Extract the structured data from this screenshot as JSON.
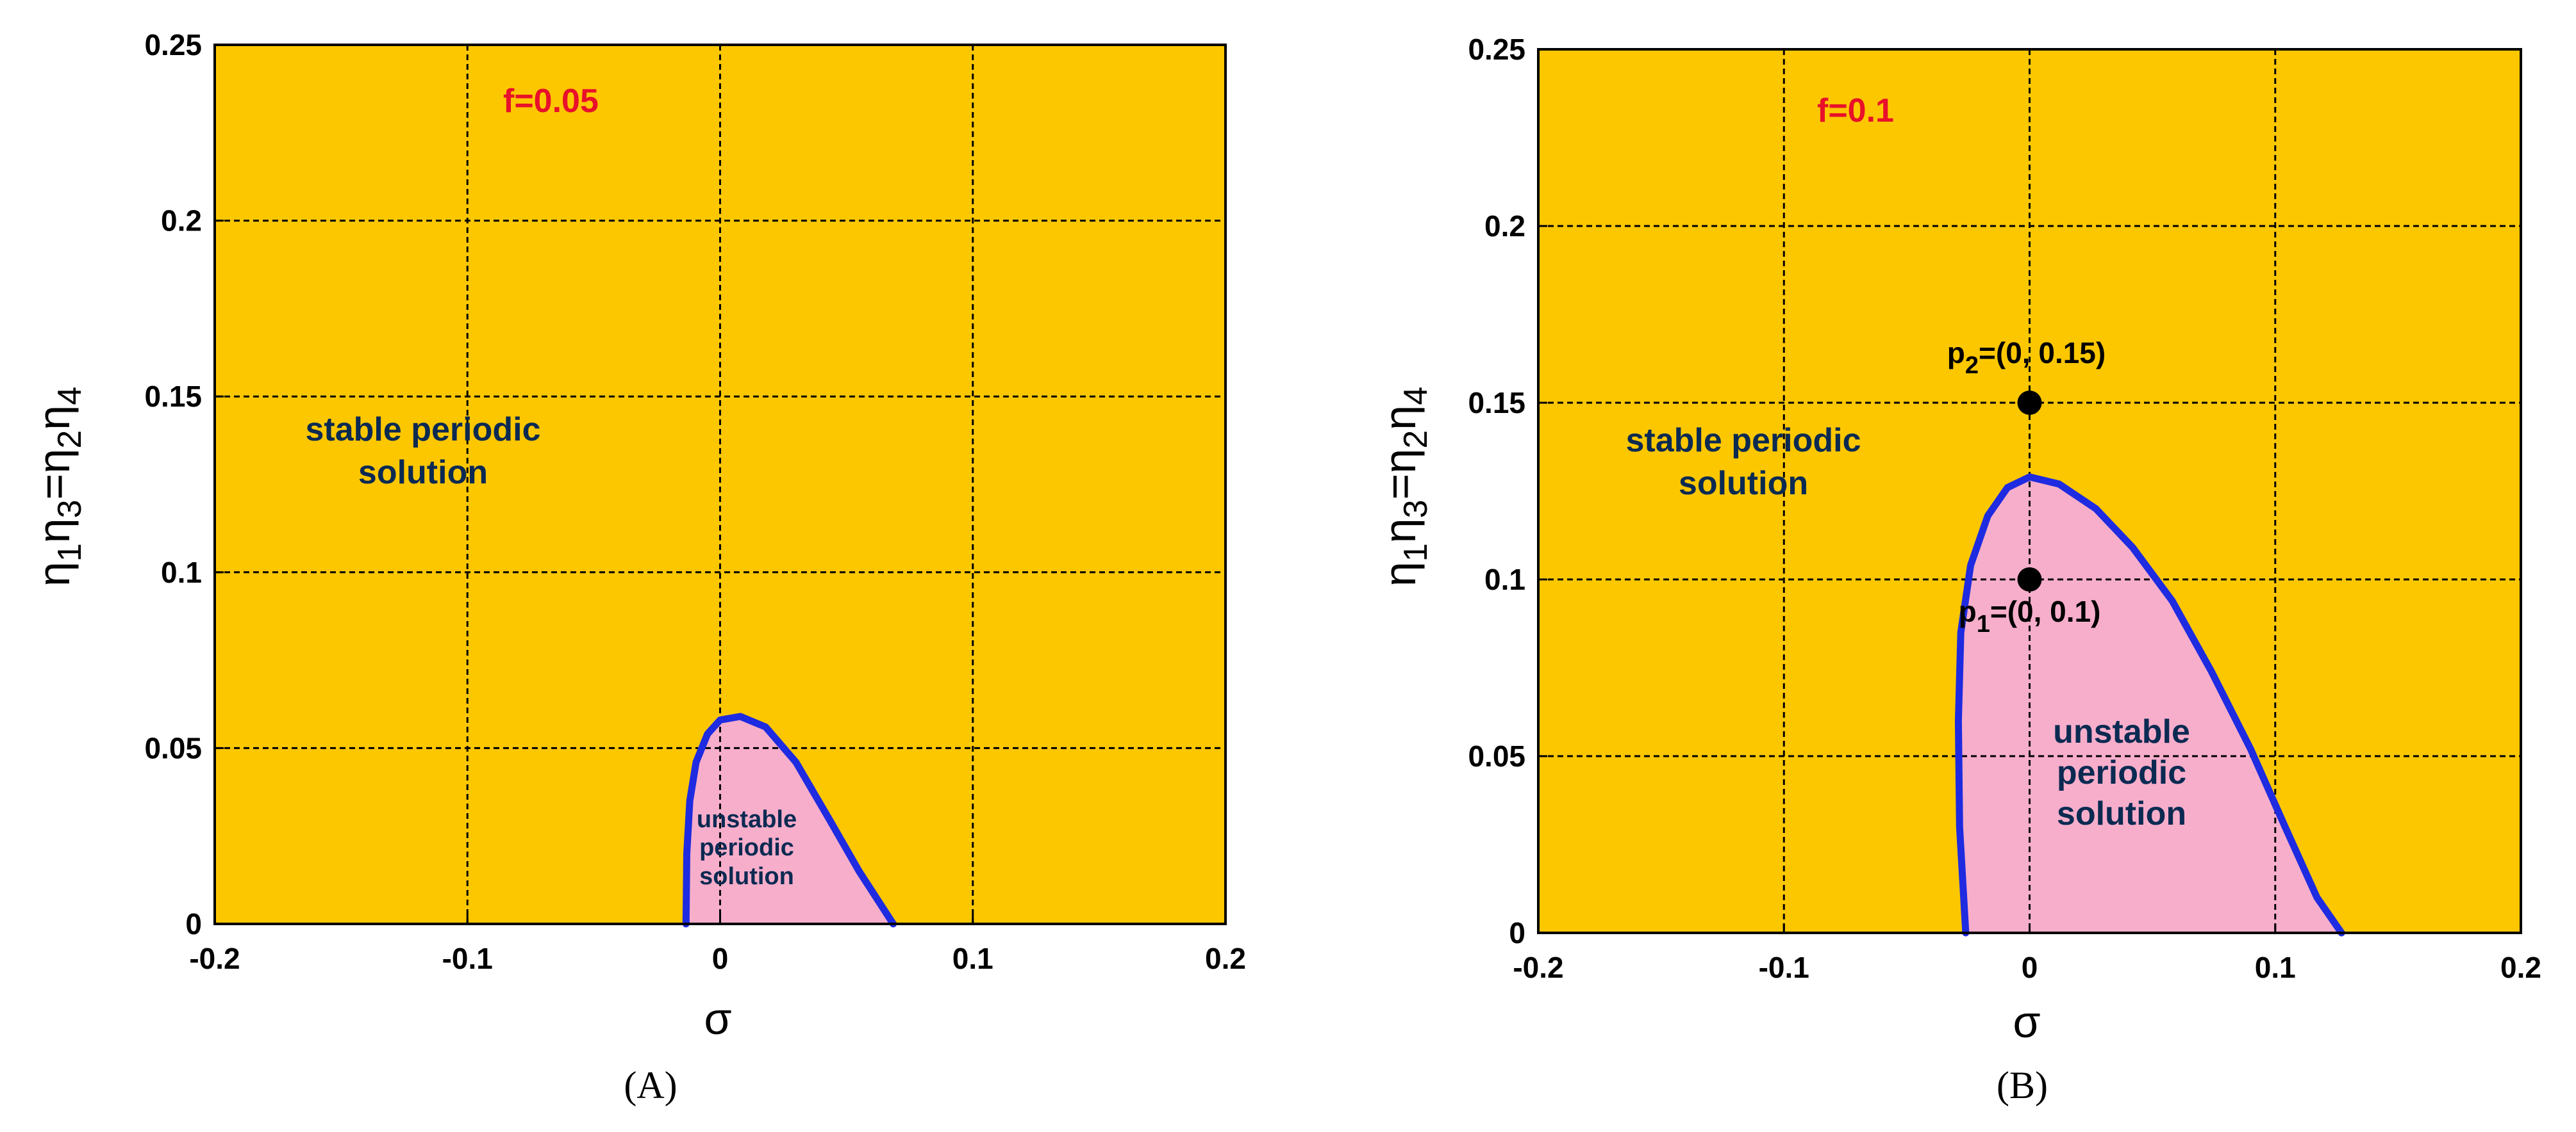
{
  "colors": {
    "stable_fill": "#FDC700",
    "unstable_fill": "#F7AECB",
    "curve": "#1F2BE0",
    "f_label": "#E8102A",
    "text_dark": "#0b2a52",
    "grid": "#000000",
    "point": "#000000"
  },
  "chart_data": [
    {
      "type": "area",
      "panel_label": "(A)",
      "annotation": "f=0.05",
      "xlabel": "σ",
      "ylabel": {
        "base": "η",
        "subs": [
          "1",
          "3",
          "2",
          "4"
        ]
      },
      "xlim": [
        -0.2,
        0.2
      ],
      "ylim": [
        0,
        0.25
      ],
      "xticks": [
        -0.2,
        -0.1,
        0,
        0.1,
        0.2
      ],
      "xtick_labels": [
        "-0.2",
        "-0.1",
        "0",
        "0.1",
        "0.2"
      ],
      "yticks": [
        0,
        0.05,
        0.1,
        0.15,
        0.2,
        0.25
      ],
      "ytick_labels": [
        "0",
        "0.05",
        "0.1",
        "0.15",
        "0.2",
        "0.25"
      ],
      "grid": true,
      "stable_region_label": [
        "stable periodic",
        "solution"
      ],
      "unstable_region_label": [
        "unstable",
        "periodic",
        "solution"
      ],
      "boundary_curve": {
        "x": [
          -0.0135,
          -0.0132,
          -0.012,
          -0.0095,
          -0.005,
          0.0,
          0.008,
          0.018,
          0.03,
          0.043,
          0.055,
          0.064,
          0.0685
        ],
        "y": [
          0.0,
          0.02,
          0.035,
          0.046,
          0.054,
          0.058,
          0.059,
          0.056,
          0.046,
          0.03,
          0.015,
          0.005,
          0.0
        ]
      },
      "points": []
    },
    {
      "type": "area",
      "panel_label": "(B)",
      "annotation": "f=0.1",
      "xlabel": "σ",
      "ylabel": {
        "base": "η",
        "subs": [
          "1",
          "3",
          "2",
          "4"
        ]
      },
      "xlim": [
        -0.2,
        0.2
      ],
      "ylim": [
        0,
        0.25
      ],
      "xticks": [
        -0.2,
        -0.1,
        0,
        0.1,
        0.2
      ],
      "xtick_labels": [
        "-0.2",
        "-0.1",
        "0",
        "0.1",
        "0.2"
      ],
      "yticks": [
        0,
        0.05,
        0.1,
        0.15,
        0.2,
        0.25
      ],
      "ytick_labels": [
        "0",
        "0.05",
        "0.1",
        "0.15",
        "0.2",
        "0.25"
      ],
      "grid": true,
      "stable_region_label": [
        "stable periodic",
        "solution"
      ],
      "unstable_region_label": [
        "unstable",
        "periodic",
        "solution"
      ],
      "boundary_curve": {
        "x": [
          -0.026,
          -0.0285,
          -0.029,
          -0.028,
          -0.024,
          -0.017,
          -0.009,
          0.0,
          0.012,
          0.027,
          0.042,
          0.058,
          0.074,
          0.09,
          0.104,
          0.117,
          0.127
        ],
        "y": [
          0.0,
          0.03,
          0.06,
          0.085,
          0.104,
          0.118,
          0.126,
          0.129,
          0.127,
          0.12,
          0.109,
          0.094,
          0.074,
          0.052,
          0.03,
          0.01,
          0.0
        ]
      },
      "points": [
        {
          "name": "p1",
          "x": 0,
          "y": 0.1,
          "label_main": "p",
          "label_sub": "1",
          "label_rest": "=(0, 0.1)",
          "label_pos": "below"
        },
        {
          "name": "p2",
          "x": 0,
          "y": 0.15,
          "label_main": "p",
          "label_sub": "2",
          "label_rest": "=(0, 0.15)",
          "label_pos": "above"
        }
      ]
    }
  ]
}
